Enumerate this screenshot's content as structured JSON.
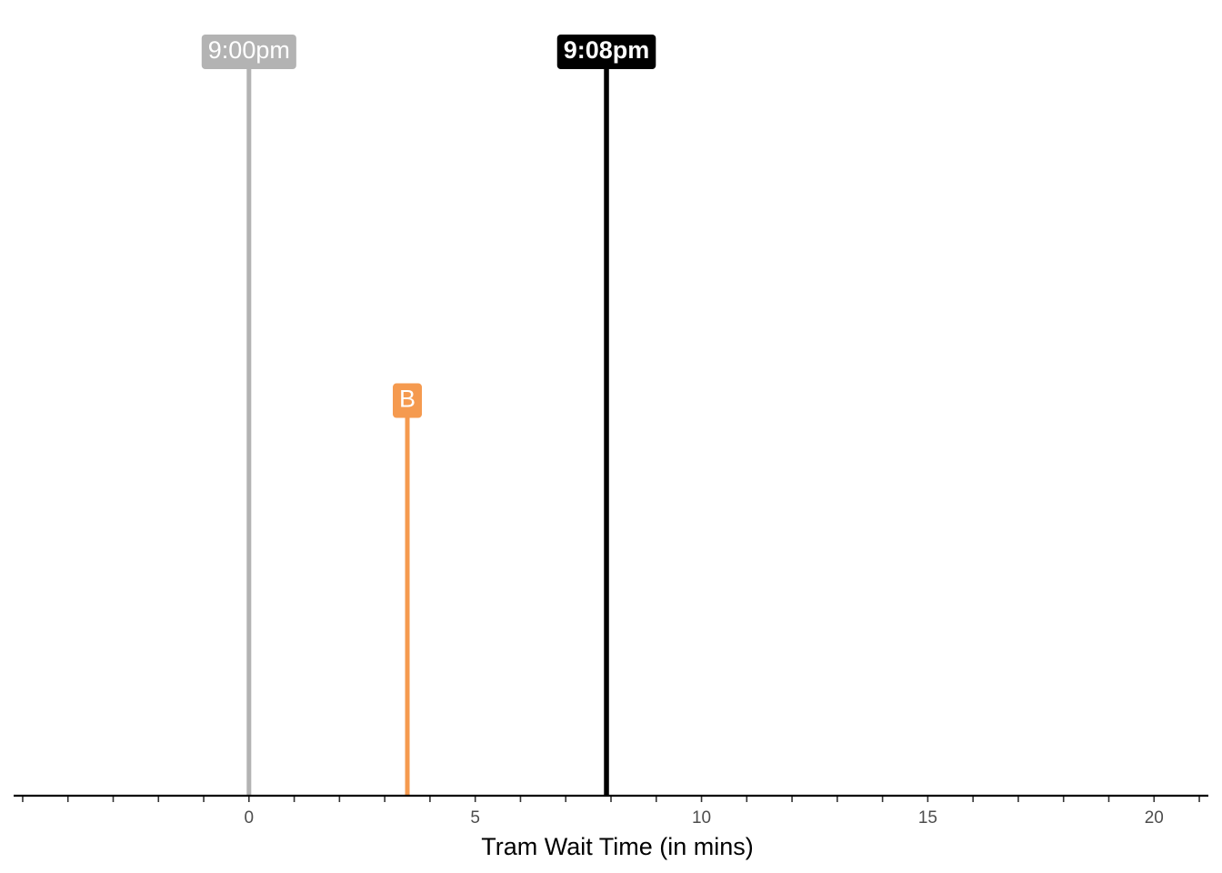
{
  "chart_data": {
    "type": "lollipop",
    "xlabel": "Tram Wait Time (in mins)",
    "ylabel": "",
    "xlim": [
      -5.2,
      21.2
    ],
    "major_ticks": [
      0,
      5,
      10,
      15,
      20
    ],
    "minor_tick_step": 1,
    "y_scale": "relative (no y axis shown)",
    "grid": false,
    "markers": [
      {
        "label": "9:00pm",
        "x": 0,
        "height": 1.0,
        "color": "#b3b3b3",
        "bold": false
      },
      {
        "label": "B",
        "x": 3.5,
        "height": 0.52,
        "color": "#f59a4f",
        "bold": false
      },
      {
        "label": "9:08pm",
        "x": 7.9,
        "height": 1.0,
        "color": "#000000",
        "bold": true
      }
    ]
  }
}
